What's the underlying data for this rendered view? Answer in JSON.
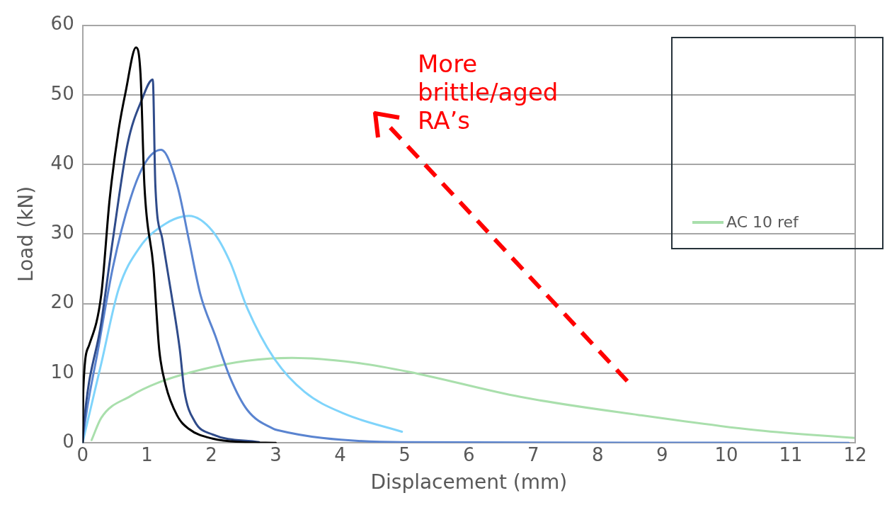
{
  "chart_data": {
    "type": "line",
    "xlabel": "Displacement (mm)",
    "ylabel": "Load (kN)",
    "xlim": [
      0,
      12
    ],
    "xticks": [
      0,
      1,
      2,
      3,
      4,
      5,
      6,
      7,
      8,
      9,
      10,
      11,
      12
    ],
    "ylim": [
      0,
      60
    ],
    "yticks": [
      0,
      10,
      20,
      30,
      40,
      50,
      60
    ],
    "grid": "y",
    "legend": "top right",
    "marker": "none",
    "line_style": "solid",
    "annotations": [
      "More brittle/aged RA’s"
    ],
    "series": [
      {
        "color": "#000000",
        "x": [
          0,
          0.01,
          0.1,
          0.29,
          0.42,
          0.56,
          0.67,
          0.83,
          0.9,
          0.96,
          1.1,
          1.19,
          1.29,
          1.47,
          1.65,
          2.02,
          2.5,
          3.0
        ],
        "values": [
          0,
          7.5,
          14,
          21.3,
          35,
          45,
          50.5,
          56.8,
          52.9,
          37,
          25.2,
          13.4,
          8.3,
          3.9,
          2,
          0.6,
          0.1,
          0
        ]
      },
      {
        "color": "#2f4b8a",
        "x": [
          0,
          0.01,
          0.29,
          0.47,
          0.7,
          0.92,
          1.09,
          1.13,
          1.24,
          1.38,
          1.51,
          1.58,
          1.74,
          2.02,
          2.74
        ],
        "values": [
          0,
          1.6,
          17.3,
          29.2,
          43,
          49.3,
          52.2,
          37,
          29.2,
          21.3,
          13.4,
          7.5,
          3.1,
          1.2,
          0.1
        ]
      },
      {
        "color": "#5a84d0",
        "x": [
          0,
          0.01,
          0.24,
          0.47,
          0.74,
          0.97,
          1.22,
          1.47,
          1.65,
          1.83,
          2.06,
          2.29,
          2.56,
          2.97,
          3.04,
          3.72,
          4.95,
          11.9
        ],
        "values": [
          0,
          1,
          13.4,
          25.2,
          35,
          40.2,
          42.1,
          37,
          29.2,
          21.3,
          15.4,
          9.4,
          4.7,
          2,
          1.8,
          0.7,
          0.1,
          0
        ]
      },
      {
        "color": "#7fd4fb",
        "x": [
          0,
          0.04,
          0.29,
          0.56,
          0.88,
          1.29,
          1.65,
          2.02,
          2.29,
          2.56,
          2.97,
          3.45,
          4.06,
          4.96
        ],
        "values": [
          0,
          1.6,
          11.4,
          22.1,
          28,
          31.5,
          32.6,
          30.4,
          26,
          19.3,
          12.2,
          7.3,
          4.2,
          1.6
        ]
      },
      {
        "name": "AC 10 ref",
        "color": "#a9dfac",
        "x": [
          0.14,
          0.29,
          0.74,
          1.19,
          1.88,
          2.56,
          3.25,
          4.26,
          5.07,
          6.8,
          8.64,
          10.49,
          12
        ],
        "values": [
          0.4,
          3.6,
          6.7,
          8.7,
          10.6,
          11.8,
          12.2,
          11.5,
          10.2,
          6.6,
          4,
          1.8,
          0.7
        ]
      }
    ]
  }
}
